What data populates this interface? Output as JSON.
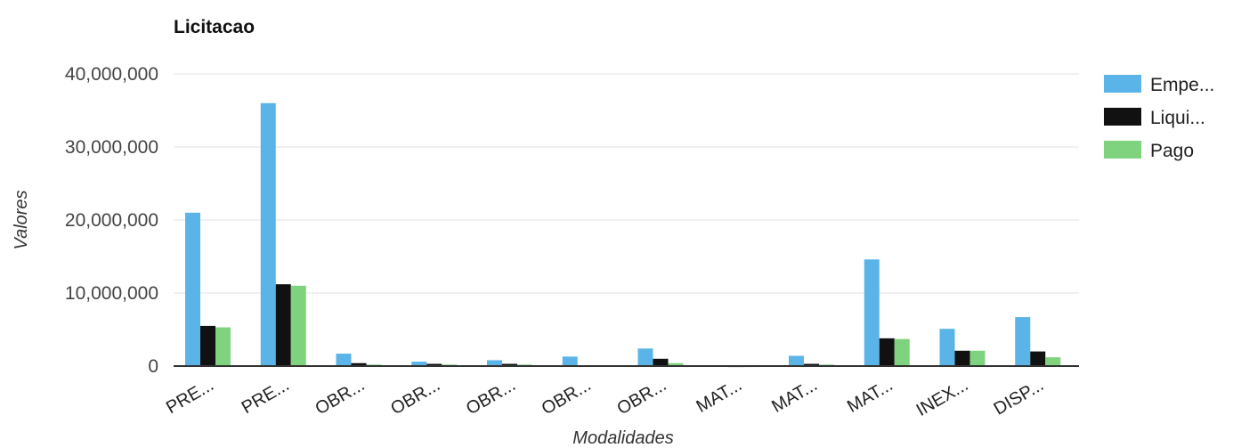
{
  "chart_data": {
    "type": "bar",
    "title": "Licitacao",
    "xlabel": "Modalidades",
    "ylabel": "Valores",
    "ylim": [
      0,
      40000000
    ],
    "yticks": [
      0,
      10000000,
      20000000,
      30000000,
      40000000
    ],
    "ytick_labels": [
      "0",
      "10,000,000",
      "20,000,000",
      "30,000,000",
      "40,000,000"
    ],
    "grid": true,
    "legend_position": "top-right",
    "categories": [
      "PRE...",
      "PRE...",
      "OBR...",
      "OBR...",
      "OBR...",
      "OBR...",
      "OBR...",
      "MAT...",
      "MAT...",
      "MAT...",
      "INEX...",
      "DISP..."
    ],
    "series": [
      {
        "name": "Empe...",
        "color": "#5ab4e8",
        "values": [
          21000000,
          36000000,
          1700000,
          600000,
          800000,
          1300000,
          2400000,
          100000,
          1400000,
          14600000,
          5100000,
          6700000
        ]
      },
      {
        "name": "Liqui...",
        "color": "#111111",
        "values": [
          5500000,
          11200000,
          400000,
          300000,
          300000,
          100000,
          1000000,
          50000,
          300000,
          3800000,
          2100000,
          2000000
        ]
      },
      {
        "name": "Pago",
        "color": "#7fd37f",
        "values": [
          5300000,
          11000000,
          200000,
          200000,
          200000,
          100000,
          400000,
          50000,
          200000,
          3700000,
          2100000,
          1200000
        ]
      }
    ]
  }
}
